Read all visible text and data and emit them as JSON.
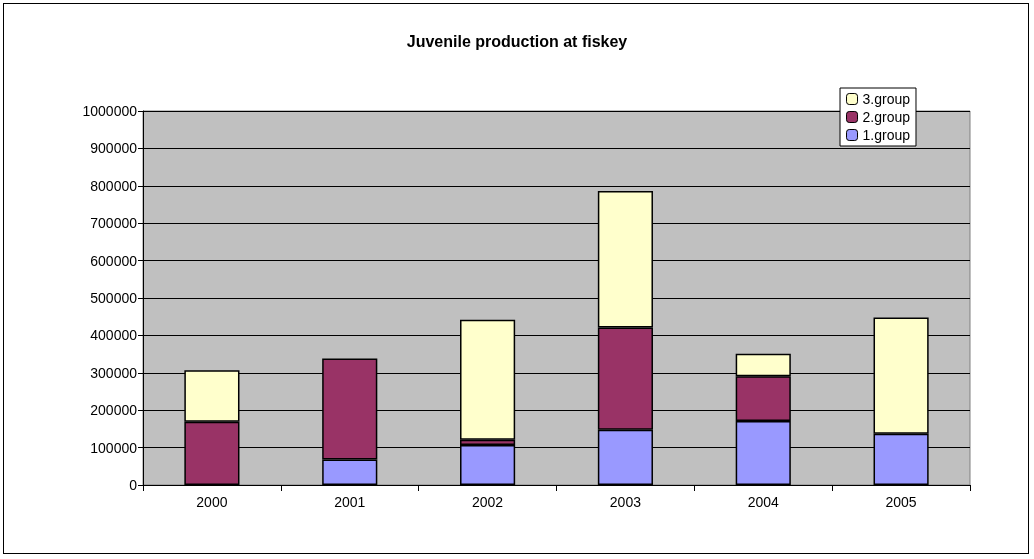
{
  "chart_data": {
    "type": "bar",
    "title": "Juvenile production at fiskey",
    "stacked": true,
    "categories": [
      "2000",
      "2001",
      "2002",
      "2003",
      "2004",
      "2005"
    ],
    "series": [
      {
        "name": "1.group",
        "color": "#9999ff",
        "values": [
          null,
          68000,
          107000,
          148000,
          171000,
          137000
        ]
      },
      {
        "name": "2.group",
        "color": "#993366",
        "values": [
          169000,
          270000,
          14000,
          273000,
          120000,
          null
        ]
      },
      {
        "name": "3.group",
        "color": "#ffffcc",
        "values": [
          138000,
          null,
          321000,
          365000,
          60000,
          311000
        ]
      }
    ],
    "ylim": [
      0,
      1000000
    ],
    "yticks": [
      0,
      100000,
      200000,
      300000,
      400000,
      500000,
      600000,
      700000,
      800000,
      900000,
      1000000
    ],
    "grid": "y",
    "legend": "top right"
  }
}
